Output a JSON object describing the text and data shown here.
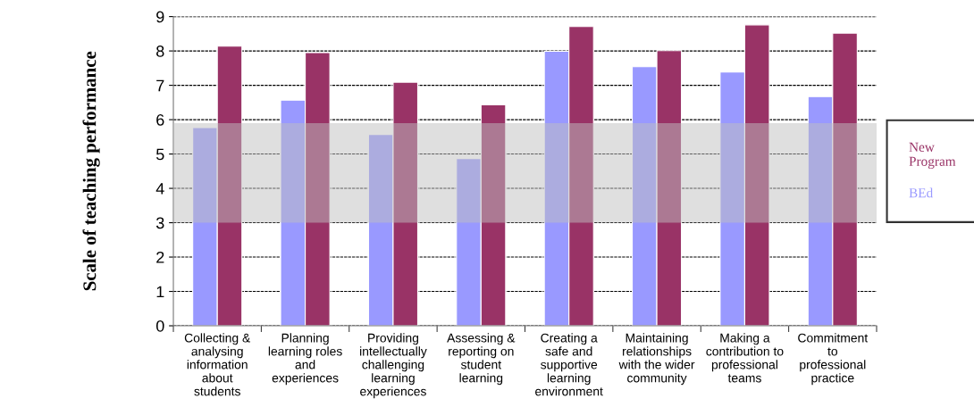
{
  "chart_data": {
    "type": "bar",
    "ylabel": "Scale of teaching performance",
    "categories": [
      "Collecting &\nanalysing\ninformation\nabout\nstudents",
      "Planning\nlearning roles\nand\nexperiences",
      "Providing\nintellectually\nchallenging\nlearning\nexperiences",
      "Assessing &\nreporting on\nstudent\nlearning",
      "Creating a\nsafe and\nsupportive\nlearning\nenvironment",
      "Maintaining\nrelationships\nwith the wider\ncommunity",
      "Making a\ncontribution to\nprofessional\nteams",
      "Commitment\nto\nprofessional\npractice"
    ],
    "series": [
      {
        "name": "BEd",
        "color": "#9999ff",
        "values": [
          5.77,
          6.57,
          5.57,
          4.87,
          7.99,
          7.54,
          7.39,
          6.67
        ]
      },
      {
        "name": "New Program",
        "color": "#993366",
        "values": [
          8.14,
          7.95,
          7.09,
          6.43,
          8.71,
          8.01,
          8.76,
          8.52
        ]
      }
    ],
    "ylim": [
      0,
      9
    ],
    "yticks": [
      0,
      1,
      2,
      3,
      4,
      5,
      6,
      7,
      8,
      9
    ],
    "grid": "y",
    "legend": "right",
    "bands": [
      {
        "axis": "y",
        "from": 3,
        "to": 5.9,
        "color": "#c0c0c0"
      }
    ]
  }
}
